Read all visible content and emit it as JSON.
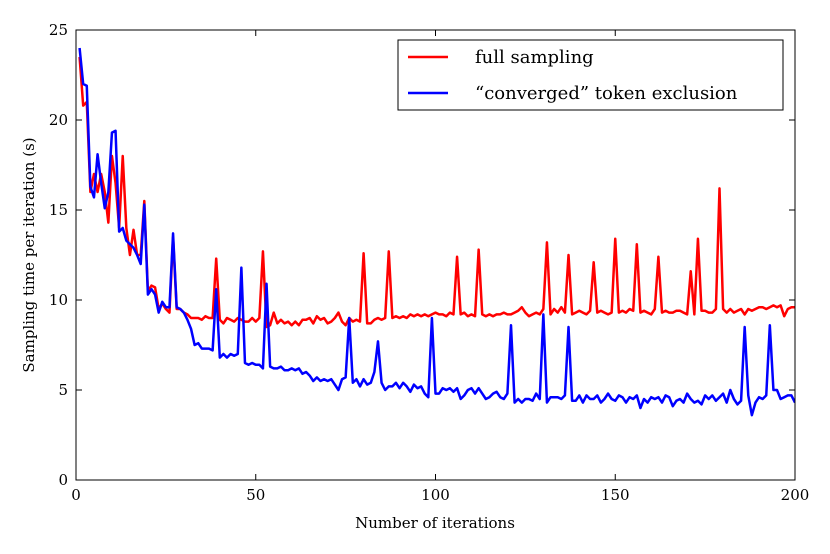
{
  "chart_data": {
    "type": "line",
    "xlabel": "Number of iterations",
    "ylabel": "Sampling time per iteration (s)",
    "xlim": [
      0,
      200
    ],
    "xticks": [
      0,
      50,
      100,
      150,
      200
    ],
    "ylim": [
      0,
      25
    ],
    "yticks": [
      0,
      5,
      10,
      15,
      20,
      25
    ],
    "legend": "upper right",
    "x": [
      1,
      2,
      3,
      4,
      5,
      6,
      7,
      8,
      9,
      10,
      11,
      12,
      13,
      14,
      15,
      16,
      17,
      18,
      19,
      20,
      21,
      22,
      23,
      24,
      25,
      26,
      27,
      28,
      29,
      30,
      31,
      32,
      33,
      34,
      35,
      36,
      37,
      38,
      39,
      40,
      41,
      42,
      43,
      44,
      45,
      46,
      47,
      48,
      49,
      50,
      51,
      52,
      53,
      54,
      55,
      56,
      57,
      58,
      59,
      60,
      61,
      62,
      63,
      64,
      65,
      66,
      67,
      68,
      69,
      70,
      71,
      72,
      73,
      74,
      75,
      76,
      77,
      78,
      79,
      80,
      81,
      82,
      83,
      84,
      85,
      86,
      87,
      88,
      89,
      90,
      91,
      92,
      93,
      94,
      95,
      96,
      97,
      98,
      99,
      100,
      101,
      102,
      103,
      104,
      105,
      106,
      107,
      108,
      109,
      110,
      111,
      112,
      113,
      114,
      115,
      116,
      117,
      118,
      119,
      120,
      121,
      122,
      123,
      124,
      125,
      126,
      127,
      128,
      129,
      130,
      131,
      132,
      133,
      134,
      135,
      136,
      137,
      138,
      139,
      140,
      141,
      142,
      143,
      144,
      145,
      146,
      147,
      148,
      149,
      150,
      151,
      152,
      153,
      154,
      155,
      156,
      157,
      158,
      159,
      160,
      161,
      162,
      163,
      164,
      165,
      166,
      167,
      168,
      169,
      170,
      171,
      172,
      173,
      174,
      175,
      176,
      177,
      178,
      179,
      180,
      181,
      182,
      183,
      184,
      185,
      186,
      187,
      188,
      189,
      190,
      191,
      192,
      193,
      194,
      195,
      196,
      197,
      198,
      199,
      200
    ],
    "series": [
      {
        "name": "full sampling",
        "color": "#ff0000",
        "values": [
          23.5,
          20.8,
          21,
          16,
          17,
          16,
          17,
          16,
          14.3,
          18,
          16.5,
          14,
          18,
          14,
          12.5,
          13.9,
          12.5,
          12.5,
          15.5,
          10.5,
          10.8,
          10.7,
          9.5,
          9.8,
          9.5,
          9.3,
          13.5,
          9.5,
          9.5,
          9.3,
          9.2,
          9,
          9,
          9,
          8.9,
          9.1,
          9,
          9,
          12.3,
          8.9,
          8.7,
          9,
          8.9,
          8.8,
          9,
          8.9,
          8.8,
          8.8,
          9,
          8.8,
          9,
          12.7,
          8.5,
          8.6,
          9.3,
          8.7,
          8.9,
          8.7,
          8.8,
          8.6,
          8.8,
          8.6,
          8.9,
          8.9,
          9,
          8.7,
          9.1,
          8.9,
          9,
          8.7,
          8.8,
          9,
          9.3,
          8.8,
          8.6,
          9,
          8.8,
          8.9,
          8.8,
          12.6,
          8.7,
          8.7,
          8.9,
          9,
          8.9,
          9,
          12.7,
          9,
          9.1,
          9,
          9.1,
          9,
          9.2,
          9.1,
          9.2,
          9.1,
          9.2,
          9.1,
          9.2,
          9.3,
          9.2,
          9.2,
          9.1,
          9.3,
          9.2,
          12.4,
          9.2,
          9.3,
          9.1,
          9.2,
          9.1,
          12.8,
          9.2,
          9.1,
          9.2,
          9.1,
          9.2,
          9.2,
          9.3,
          9.2,
          9.2,
          9.3,
          9.4,
          9.6,
          9.3,
          9.1,
          9.2,
          9.3,
          9.2,
          9.5,
          13.2,
          9.2,
          9.5,
          9.3,
          9.6,
          9.3,
          12.5,
          9.2,
          9.3,
          9.4,
          9.3,
          9.2,
          9.4,
          12.1,
          9.3,
          9.4,
          9.3,
          9.2,
          9.3,
          13.4,
          9.3,
          9.4,
          9.3,
          9.5,
          9.4,
          13.1,
          9.3,
          9.4,
          9.3,
          9.2,
          9.5,
          12.4,
          9.3,
          9.4,
          9.3,
          9.3,
          9.4,
          9.4,
          9.3,
          9.2,
          11.6,
          9.2,
          13.4,
          9.4,
          9.4,
          9.3,
          9.3,
          9.5,
          16.2,
          9.5,
          9.3,
          9.5,
          9.3,
          9.4,
          9.5,
          9.2,
          9.5,
          9.4,
          9.5,
          9.6,
          9.6,
          9.5,
          9.6,
          9.7,
          9.6,
          9.7,
          9.1,
          9.5,
          9.6,
          9.6
        ]
      },
      {
        "name": "“converged” token exclusion",
        "color": "#0000ff",
        "values": [
          24,
          22,
          21.9,
          16.3,
          15.7,
          18.1,
          16.5,
          15.1,
          16,
          19.3,
          19.4,
          13.8,
          14,
          13.3,
          13.1,
          12.9,
          12.5,
          12,
          15.3,
          10.3,
          10.6,
          10.3,
          9.3,
          9.9,
          9.6,
          9.6,
          13.7,
          9.6,
          9.5,
          9.3,
          8.9,
          8.4,
          7.5,
          7.6,
          7.3,
          7.3,
          7.3,
          7.2,
          10.6,
          6.8,
          7,
          6.8,
          7,
          6.9,
          7,
          11.8,
          6.5,
          6.4,
          6.5,
          6.4,
          6.4,
          6.2,
          10.9,
          6.3,
          6.2,
          6.2,
          6.3,
          6.1,
          6.1,
          6.2,
          6.1,
          6.2,
          5.9,
          6,
          5.8,
          5.5,
          5.7,
          5.5,
          5.6,
          5.5,
          5.6,
          5.3,
          5,
          5.6,
          5.7,
          9,
          5.4,
          5.6,
          5.2,
          5.6,
          5.3,
          5.4,
          6,
          7.7,
          5.4,
          5,
          5.2,
          5.2,
          5.4,
          5.1,
          5.4,
          5.2,
          4.9,
          5.3,
          5.1,
          5.2,
          4.8,
          4.6,
          9,
          4.8,
          4.8,
          5.1,
          5,
          5.1,
          4.9,
          5.1,
          4.5,
          4.7,
          5,
          5.1,
          4.8,
          5.1,
          4.8,
          4.5,
          4.6,
          4.8,
          4.9,
          4.6,
          4.5,
          4.8,
          8.6,
          4.3,
          4.5,
          4.3,
          4.5,
          4.5,
          4.4,
          4.8,
          4.5,
          9.2,
          4.3,
          4.6,
          4.6,
          4.6,
          4.5,
          4.7,
          8.5,
          4.4,
          4.4,
          4.7,
          4.3,
          4.7,
          4.5,
          4.5,
          4.7,
          4.3,
          4.5,
          4.8,
          4.5,
          4.4,
          4.7,
          4.6,
          4.3,
          4.6,
          4.5,
          4.7,
          4,
          4.5,
          4.3,
          4.6,
          4.5,
          4.6,
          4.3,
          4.7,
          4.6,
          4.1,
          4.4,
          4.5,
          4.3,
          4.8,
          4.5,
          4.3,
          4.4,
          4.2,
          4.7,
          4.5,
          4.7,
          4.4,
          4.6,
          4.8,
          4.3,
          5,
          4.5,
          4.2,
          4.4,
          8.5,
          4.7,
          3.6,
          4.3,
          4.6,
          4.5,
          4.7,
          8.6,
          5,
          5,
          4.5,
          4.6,
          4.7,
          4.7,
          4.3
        ]
      }
    ]
  }
}
